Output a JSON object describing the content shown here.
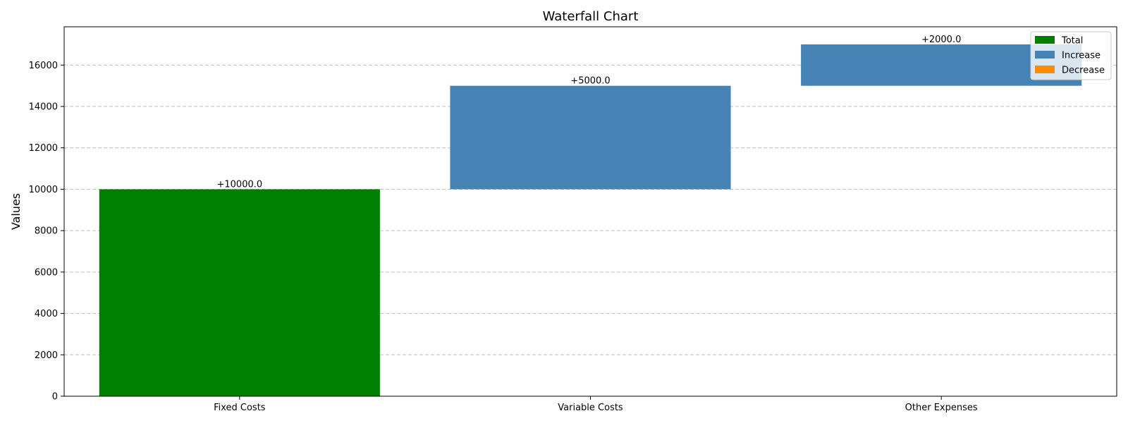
{
  "chart_data": {
    "type": "bar",
    "subtype": "waterfall",
    "title": "Waterfall Chart",
    "xlabel": "",
    "ylabel": "Values",
    "categories": [
      "Fixed Costs",
      "Variable Costs",
      "Other Expenses"
    ],
    "values": [
      10000,
      5000,
      2000
    ],
    "bar_kinds": [
      "total",
      "increase",
      "increase"
    ],
    "data_labels": [
      "+10000.0",
      "+5000.0",
      "+2000.0"
    ],
    "ylim": [
      0,
      17850
    ],
    "yticks": [
      0,
      2000,
      4000,
      6000,
      8000,
      10000,
      12000,
      14000,
      16000
    ],
    "grid": "y-dashed",
    "legend_position": "top-right",
    "legend": [
      {
        "label": "Total",
        "kind": "total"
      },
      {
        "label": "Increase",
        "kind": "increase"
      },
      {
        "label": "Decrease",
        "kind": "decrease"
      }
    ],
    "colors": {
      "total": "#008000",
      "increase": "#4682b4",
      "decrease": "#ff8c00",
      "grid": "#c0c0c0",
      "axis": "#000000"
    }
  }
}
